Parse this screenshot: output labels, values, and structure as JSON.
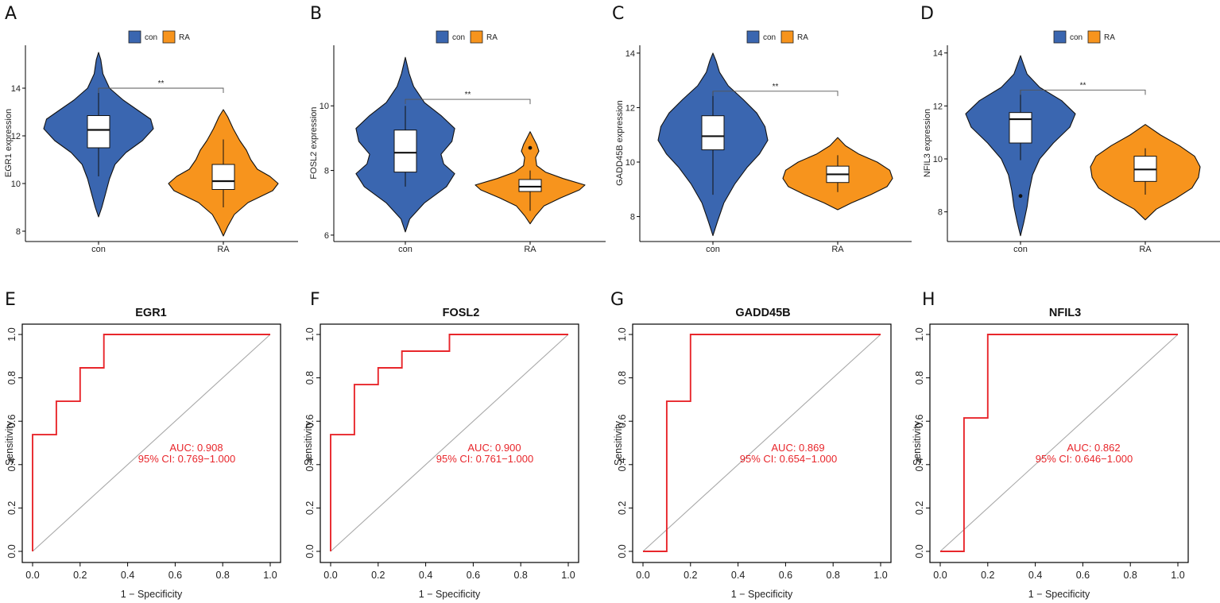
{
  "colors": {
    "con": "#3a66b0",
    "RA": "#f7941d",
    "roc": "#e8262b",
    "diag": "#a8a8a8"
  },
  "legend": {
    "con": "con",
    "RA": "RA"
  },
  "roc_axis": {
    "xlabel": "1 − Specificity",
    "ylabel": "Sensitivity"
  },
  "chart_data": [
    {
      "panel": "A",
      "type": "violin",
      "gene": "EGR1",
      "ylabel": "EGR1 expression",
      "ylim": [
        7.7,
        15.7
      ],
      "yticks": [
        8,
        10,
        12,
        14
      ],
      "categories": [
        "con",
        "RA"
      ],
      "significance": "**",
      "sig_y": 14.0,
      "groups": [
        {
          "name": "con",
          "box": {
            "q1": 11.5,
            "median": 12.25,
            "q3": 12.85,
            "whisker_low": 10.3,
            "whisker_high": 14.0
          },
          "outliers": [],
          "density": [
            [
              8.6,
              0
            ],
            [
              9.0,
              0.06
            ],
            [
              9.6,
              0.13
            ],
            [
              10.2,
              0.2
            ],
            [
              10.8,
              0.3
            ],
            [
              11.3,
              0.5
            ],
            [
              11.8,
              0.8
            ],
            [
              12.3,
              1.0
            ],
            [
              12.7,
              0.95
            ],
            [
              13.1,
              0.7
            ],
            [
              13.5,
              0.45
            ],
            [
              14.0,
              0.2
            ],
            [
              14.6,
              0.08
            ],
            [
              15.2,
              0.04
            ],
            [
              15.5,
              0
            ]
          ]
        },
        {
          "name": "RA",
          "box": {
            "q1": 9.75,
            "median": 10.1,
            "q3": 10.8,
            "whisker_low": 9.0,
            "whisker_high": 11.85
          },
          "outliers": [],
          "density": [
            [
              7.8,
              0
            ],
            [
              8.2,
              0.08
            ],
            [
              8.7,
              0.2
            ],
            [
              9.2,
              0.45
            ],
            [
              9.7,
              0.9
            ],
            [
              10.0,
              1.0
            ],
            [
              10.3,
              0.85
            ],
            [
              10.6,
              0.62
            ],
            [
              11.0,
              0.5
            ],
            [
              11.4,
              0.42
            ],
            [
              11.8,
              0.3
            ],
            [
              12.3,
              0.18
            ],
            [
              12.8,
              0.08
            ],
            [
              13.1,
              0
            ]
          ]
        }
      ]
    },
    {
      "panel": "B",
      "type": "violin",
      "gene": "FOSL2",
      "ylabel": "FOSL2 expression",
      "ylim": [
        5.9,
        11.8
      ],
      "yticks": [
        6,
        8,
        10
      ],
      "categories": [
        "con",
        "RA"
      ],
      "significance": "**",
      "sig_y": 10.2,
      "groups": [
        {
          "name": "con",
          "box": {
            "q1": 7.95,
            "median": 8.55,
            "q3": 9.25,
            "whisker_low": 7.5,
            "whisker_high": 10.0
          },
          "outliers": [],
          "density": [
            [
              6.1,
              0
            ],
            [
              6.5,
              0.08
            ],
            [
              7.0,
              0.35
            ],
            [
              7.5,
              0.75
            ],
            [
              7.9,
              0.9
            ],
            [
              8.2,
              0.7
            ],
            [
              8.5,
              0.65
            ],
            [
              8.9,
              0.85
            ],
            [
              9.3,
              0.9
            ],
            [
              9.7,
              0.65
            ],
            [
              10.1,
              0.35
            ],
            [
              10.6,
              0.15
            ],
            [
              11.0,
              0.07
            ],
            [
              11.5,
              0
            ]
          ]
        },
        {
          "name": "RA",
          "box": {
            "q1": 7.35,
            "median": 7.5,
            "q3": 7.72,
            "whisker_low": 6.75,
            "whisker_high": 8.0
          },
          "outliers": [
            8.7
          ],
          "density": [
            [
              6.35,
              0
            ],
            [
              6.6,
              0.1
            ],
            [
              6.9,
              0.25
            ],
            [
              7.15,
              0.55
            ],
            [
              7.4,
              0.9
            ],
            [
              7.55,
              1.0
            ],
            [
              7.75,
              0.6
            ],
            [
              7.95,
              0.28
            ],
            [
              8.15,
              0.12
            ],
            [
              8.4,
              0.1
            ],
            [
              8.6,
              0.16
            ],
            [
              8.8,
              0.12
            ],
            [
              9.0,
              0.06
            ],
            [
              9.2,
              0
            ]
          ]
        }
      ]
    },
    {
      "panel": "C",
      "type": "violin",
      "gene": "GADD45B",
      "ylabel": "GADD45B expression",
      "ylim": [
        7.2,
        14.2
      ],
      "yticks": [
        8,
        10,
        12,
        14
      ],
      "categories": [
        "con",
        "RA"
      ],
      "significance": "**",
      "sig_y": 12.6,
      "groups": [
        {
          "name": "con",
          "box": {
            "q1": 10.45,
            "median": 10.95,
            "q3": 11.7,
            "whisker_low": 8.8,
            "whisker_high": 12.6
          },
          "outliers": [],
          "density": [
            [
              7.3,
              0
            ],
            [
              7.8,
              0.08
            ],
            [
              8.5,
              0.2
            ],
            [
              9.2,
              0.4
            ],
            [
              9.8,
              0.62
            ],
            [
              10.3,
              0.85
            ],
            [
              10.8,
              1.0
            ],
            [
              11.3,
              0.95
            ],
            [
              11.8,
              0.8
            ],
            [
              12.3,
              0.55
            ],
            [
              12.8,
              0.28
            ],
            [
              13.3,
              0.12
            ],
            [
              13.7,
              0.06
            ],
            [
              14.0,
              0
            ]
          ]
        },
        {
          "name": "RA",
          "box": {
            "q1": 9.25,
            "median": 9.55,
            "q3": 9.85,
            "whisker_low": 8.9,
            "whisker_high": 10.25
          },
          "outliers": [],
          "density": [
            [
              8.25,
              0
            ],
            [
              8.5,
              0.25
            ],
            [
              8.8,
              0.6
            ],
            [
              9.1,
              0.9
            ],
            [
              9.4,
              1.0
            ],
            [
              9.7,
              0.95
            ],
            [
              10.0,
              0.72
            ],
            [
              10.3,
              0.38
            ],
            [
              10.6,
              0.14
            ],
            [
              10.9,
              0
            ]
          ]
        }
      ]
    },
    {
      "panel": "D",
      "type": "violin",
      "gene": "NFIL3",
      "ylabel": "NFIL3 expression",
      "ylim": [
        7.0,
        14.2
      ],
      "yticks": [
        8,
        10,
        12,
        14
      ],
      "categories": [
        "con",
        "RA"
      ],
      "significance": "**",
      "sig_y": 12.6,
      "groups": [
        {
          "name": "con",
          "box": {
            "q1": 10.6,
            "median": 11.5,
            "q3": 11.75,
            "whisker_low": 9.95,
            "whisker_high": 12.6
          },
          "outliers": [
            8.6
          ],
          "density": [
            [
              7.1,
              0
            ],
            [
              7.6,
              0.06
            ],
            [
              8.2,
              0.12
            ],
            [
              8.8,
              0.16
            ],
            [
              9.4,
              0.22
            ],
            [
              10.0,
              0.35
            ],
            [
              10.6,
              0.6
            ],
            [
              11.2,
              0.9
            ],
            [
              11.7,
              1.0
            ],
            [
              12.2,
              0.75
            ],
            [
              12.7,
              0.35
            ],
            [
              13.2,
              0.12
            ],
            [
              13.6,
              0.05
            ],
            [
              13.9,
              0
            ]
          ]
        },
        {
          "name": "RA",
          "box": {
            "q1": 9.15,
            "median": 9.6,
            "q3": 10.1,
            "whisker_low": 8.65,
            "whisker_high": 10.4
          },
          "outliers": [],
          "density": [
            [
              7.7,
              0
            ],
            [
              8.1,
              0.2
            ],
            [
              8.5,
              0.55
            ],
            [
              8.9,
              0.85
            ],
            [
              9.3,
              0.97
            ],
            [
              9.7,
              1.0
            ],
            [
              10.1,
              0.9
            ],
            [
              10.5,
              0.62
            ],
            [
              10.9,
              0.28
            ],
            [
              11.3,
              0
            ]
          ]
        }
      ]
    },
    {
      "panel": "E",
      "type": "roc",
      "title": "EGR1",
      "auc_label": "AUC: 0.908",
      "ci_label": "95% CI: 0.769−1.000",
      "xlim": [
        0,
        1
      ],
      "ylim": [
        0,
        1
      ],
      "ticks": [
        "0.0",
        "0.2",
        "0.4",
        "0.6",
        "0.8",
        "1.0"
      ],
      "x": [
        0,
        0,
        0.1,
        0.1,
        0.2,
        0.2,
        0.3,
        0.3,
        1.0
      ],
      "y": [
        0,
        0.538,
        0.538,
        0.692,
        0.692,
        0.846,
        0.846,
        1.0,
        1.0
      ]
    },
    {
      "panel": "F",
      "type": "roc",
      "title": "FOSL2",
      "auc_label": "AUC: 0.900",
      "ci_label": "95% CI: 0.761−1.000",
      "xlim": [
        0,
        1
      ],
      "ylim": [
        0,
        1
      ],
      "ticks": [
        "0.0",
        "0.2",
        "0.4",
        "0.6",
        "0.8",
        "1.0"
      ],
      "x": [
        0,
        0,
        0.1,
        0.1,
        0.2,
        0.2,
        0.3,
        0.3,
        0.5,
        0.5,
        1.0
      ],
      "y": [
        0,
        0.538,
        0.538,
        0.769,
        0.769,
        0.846,
        0.846,
        0.923,
        0.923,
        1.0,
        1.0
      ]
    },
    {
      "panel": "G",
      "type": "roc",
      "title": "GADD45B",
      "auc_label": "AUC: 0.869",
      "ci_label": "95% CI: 0.654−1.000",
      "xlim": [
        0,
        1
      ],
      "ylim": [
        0,
        1
      ],
      "ticks": [
        "0.0",
        "0.2",
        "0.4",
        "0.6",
        "0.8",
        "1.0"
      ],
      "x": [
        0,
        0.1,
        0.1,
        0.2,
        0.2,
        1.0
      ],
      "y": [
        0,
        0,
        0.692,
        0.692,
        1.0,
        1.0
      ]
    },
    {
      "panel": "H",
      "type": "roc",
      "title": "NFIL3",
      "auc_label": "AUC: 0.862",
      "ci_label": "95% CI: 0.646−1.000",
      "xlim": [
        0,
        1
      ],
      "ylim": [
        0,
        1
      ],
      "ticks": [
        "0.0",
        "0.2",
        "0.4",
        "0.6",
        "0.8",
        "1.0"
      ],
      "x": [
        0,
        0.1,
        0.1,
        0.2,
        0.2,
        1.0
      ],
      "y": [
        0,
        0,
        0.615,
        0.615,
        1.0,
        1.0
      ]
    }
  ]
}
